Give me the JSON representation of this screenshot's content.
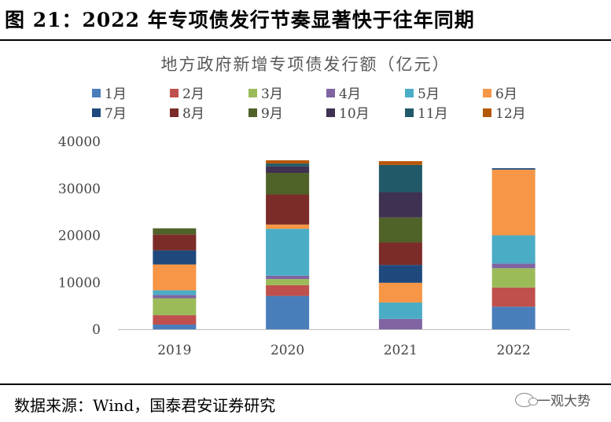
{
  "figure_title": "图 21：2022 年专项债发行节奏显著快于往年同期",
  "source": "数据来源：Wind，国泰君安证券研究",
  "watermark": "一观大势",
  "watermark_icon": "wechat-icon",
  "chart_data": {
    "type": "bar",
    "stacked": true,
    "title": "地方政府新增专项债发行额（亿元）",
    "xlabel": "",
    "ylabel": "",
    "categories": [
      "2019",
      "2020",
      "2021",
      "2022"
    ],
    "ylim": [
      0,
      40000
    ],
    "yticks": [
      0,
      10000,
      20000,
      30000,
      40000
    ],
    "grid": false,
    "legend_position": "top",
    "series": [
      {
        "name": "1月",
        "color": "#4a7ebb",
        "values": [
          1000,
          7100,
          0,
          4800
        ]
      },
      {
        "name": "2月",
        "color": "#c0504d",
        "values": [
          2000,
          2300,
          0,
          4100
        ]
      },
      {
        "name": "3月",
        "color": "#9bbb59",
        "values": [
          3600,
          1300,
          0,
          4100
        ]
      },
      {
        "name": "4月",
        "color": "#8064a2",
        "values": [
          700,
          700,
          2200,
          1000
        ]
      },
      {
        "name": "5月",
        "color": "#4bacc6",
        "values": [
          1000,
          10000,
          3500,
          6000
        ]
      },
      {
        "name": "6月",
        "color": "#f79646",
        "values": [
          5500,
          900,
          4200,
          14000
        ]
      },
      {
        "name": "7月",
        "color": "#1f497d",
        "values": [
          3000,
          0,
          3800,
          300
        ]
      },
      {
        "name": "8月",
        "color": "#7b2c28",
        "values": [
          3400,
          6400,
          4800,
          0
        ]
      },
      {
        "name": "9月",
        "color": "#4f6228",
        "values": [
          1300,
          4600,
          5300,
          0
        ]
      },
      {
        "name": "10月",
        "color": "#3f3151",
        "values": [
          0,
          1400,
          5400,
          0
        ]
      },
      {
        "name": "11月",
        "color": "#215968",
        "values": [
          0,
          600,
          5800,
          0
        ]
      },
      {
        "name": "12月",
        "color": "#b65708",
        "values": [
          0,
          700,
          800,
          0
        ]
      }
    ]
  }
}
